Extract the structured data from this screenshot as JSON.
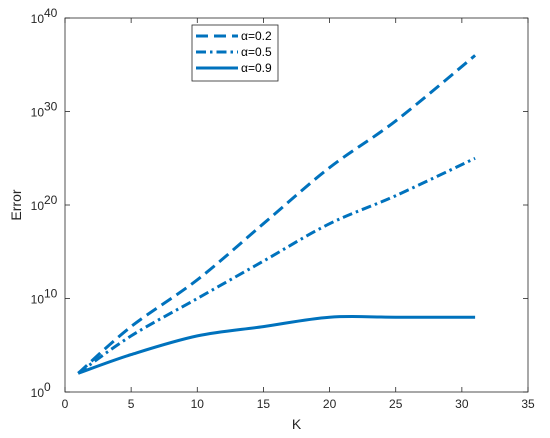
{
  "chart_data": {
    "type": "line",
    "xlabel": "K",
    "ylabel": "Error",
    "xlim": [
      0,
      35
    ],
    "ylim": [
      1,
      1e+40
    ],
    "yscale": "log",
    "grid": false,
    "legend_position": "top-left",
    "xticks": [
      "0",
      "5",
      "10",
      "15",
      "20",
      "25",
      "30",
      "35"
    ],
    "yticks": [
      {
        "base": "10",
        "exp": "0"
      },
      {
        "base": "10",
        "exp": "10"
      },
      {
        "base": "10",
        "exp": "20"
      },
      {
        "base": "10",
        "exp": "30"
      },
      {
        "base": "10",
        "exp": "40"
      }
    ],
    "series": [
      {
        "name": "α=0.2",
        "style": "dashed",
        "color": "#0072BD",
        "x": [
          1,
          5,
          10,
          15,
          20,
          25,
          31
        ],
        "y": [
          100.0,
          10000000.0,
          1000000000000.0,
          1e+18,
          1e+24,
          1e+29,
          1e+36
        ]
      },
      {
        "name": "α=0.5",
        "style": "dashdot",
        "color": "#0072BD",
        "x": [
          1,
          5,
          10,
          15,
          20,
          25,
          31
        ],
        "y": [
          100.0,
          1000000.0,
          10000000000.0,
          100000000000000.0,
          1e+18,
          1e+21,
          1e+25
        ]
      },
      {
        "name": "α=0.9",
        "style": "solid",
        "color": "#0072BD",
        "x": [
          1,
          5,
          10,
          15,
          20,
          25,
          31
        ],
        "y": [
          100.0,
          10000.0,
          1000000.0,
          10000000.0,
          100000000.0,
          100000000.0,
          100000000.0
        ]
      }
    ]
  }
}
